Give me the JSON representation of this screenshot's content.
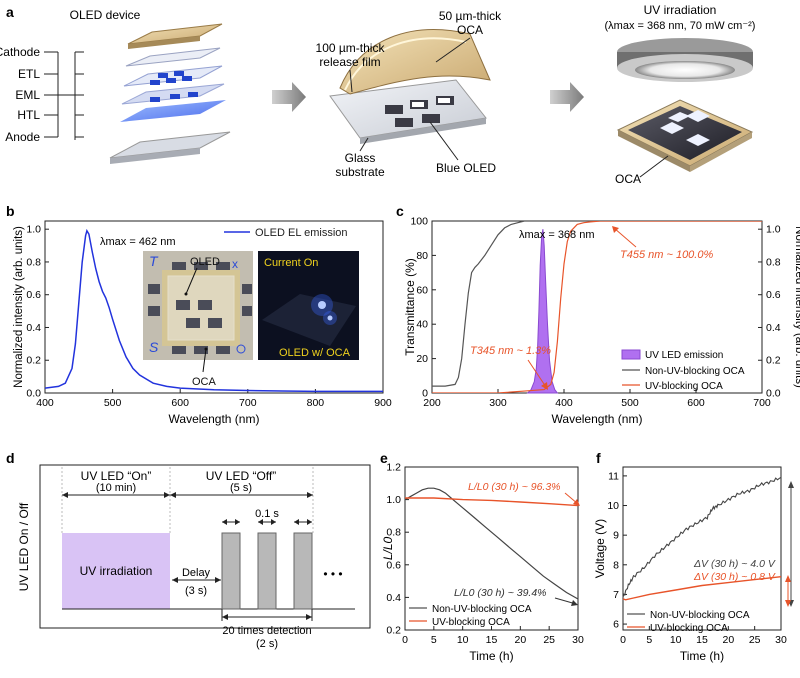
{
  "panel_a": {
    "letter": "a",
    "oled_title": "OLED device",
    "layers": [
      "Cathode",
      "ETL",
      "EML",
      "HTL",
      "Anode"
    ],
    "oca_label": "50 µm-thick",
    "oca_label2": "OCA",
    "release_label": "100 µm-thick",
    "release_label2": "release film",
    "glass_label": "Glass",
    "glass_label2": "substrate",
    "blue_oled_label": "Blue OLED",
    "uv_title": "UV irradiation",
    "uv_sub": "(λmax = 368 nm, 70 mW cm⁻²)",
    "oca_bottom": "OCA"
  },
  "panel_b": {
    "letter": "b",
    "legend": "OLED EL emission",
    "lambda_text": "λmax = 462 nm",
    "inset_oled": "OLED",
    "inset_oca": "OCA",
    "inset_current": "Current On",
    "inset_oled_oca": "OLED w/ OCA",
    "colors": {
      "line": "#2233dd"
    }
  },
  "panel_c": {
    "letter": "c",
    "lambda_text": "λmax = 368 nm",
    "t455": "T455 nm ~ 100.0%",
    "t345": "T345 nm ~ 1.3%",
    "legend": [
      "UV LED emission",
      "Non-UV-blocking OCA",
      "UV-blocking OCA"
    ],
    "colors": {
      "purple": "#b070f0",
      "orange": "#e8542a",
      "gray": "#555555"
    }
  },
  "panel_d": {
    "letter": "d",
    "ylabel": "UV LED On / Off",
    "on_title": "UV LED “On”",
    "on_sub": "(10 min)",
    "off_title": "UV LED “Off”",
    "off_sub": "(5 s)",
    "uv_irradiation": "UV irradiation",
    "delay": "Delay",
    "delay_sub": "(3 s)",
    "pulse": "0.1 s",
    "detection": "20 times detection",
    "detection_sub": "(2 s)",
    "ellipsis": "• • •"
  },
  "panel_e": {
    "letter": "e",
    "ann_top": "L/L0 (30 h) ~ 96.3%",
    "ann_bottom": "L/L0 (30 h) ~ 39.4%",
    "legend": [
      "Non-UV-blocking OCA",
      "UV-blocking OCA"
    ]
  },
  "panel_f": {
    "letter": "f",
    "ann_top": "ΔV (30 h) ~ 4.0 V",
    "ann_bottom": "ΔV (30 h) ~ 0.8 V",
    "legend": [
      "Non-UV-blocking OCA",
      "UV-blocking OCA"
    ]
  },
  "chart_data": [
    {
      "id": "b",
      "type": "line",
      "title": "",
      "xlabel": "Wavelength (nm)",
      "ylabel": "Normalized intensity (arb. units)",
      "xlim": [
        400,
        900
      ],
      "ylim": [
        0.0,
        1.05
      ],
      "xticks": [
        400,
        500,
        600,
        700,
        800,
        900
      ],
      "yticks": [
        0.0,
        0.2,
        0.4,
        0.6,
        0.8,
        1.0
      ],
      "series": [
        {
          "name": "OLED EL emission",
          "x": [
            400,
            420,
            430,
            440,
            445,
            450,
            455,
            460,
            462,
            465,
            470,
            475,
            480,
            485,
            490,
            495,
            500,
            510,
            520,
            530,
            540,
            560,
            580,
            600,
            650,
            700,
            750,
            800,
            850,
            900
          ],
          "y": [
            0.03,
            0.04,
            0.06,
            0.15,
            0.3,
            0.55,
            0.8,
            0.96,
            0.99,
            0.97,
            0.86,
            0.76,
            0.68,
            0.62,
            0.58,
            0.52,
            0.45,
            0.32,
            0.22,
            0.15,
            0.11,
            0.06,
            0.04,
            0.03,
            0.02,
            0.015,
            0.012,
            0.01,
            0.01,
            0.01
          ]
        }
      ]
    },
    {
      "id": "c",
      "type": "line",
      "title": "",
      "xlabel": "Wavelength (nm)",
      "ylabel": "Transmittance (%)",
      "ylabel_right": "Normalized intensity (arb. units)",
      "xlim": [
        200,
        700
      ],
      "ylim": [
        0,
        100
      ],
      "ylim_right": [
        0.0,
        1.05
      ],
      "xticks": [
        200,
        300,
        400,
        500,
        600,
        700
      ],
      "yticks": [
        0,
        20,
        40,
        60,
        80,
        100
      ],
      "yticks_right": [
        0.0,
        0.2,
        0.4,
        0.6,
        0.8,
        1.0
      ],
      "series": [
        {
          "name": "Non-UV-blocking OCA",
          "axis": "left",
          "x": [
            200,
            220,
            235,
            240,
            245,
            250,
            255,
            260,
            265,
            270,
            280,
            290,
            300,
            310,
            320,
            330,
            340,
            350,
            400,
            500,
            600,
            700
          ],
          "y": [
            4,
            4,
            5,
            9,
            20,
            40,
            58,
            70,
            73,
            75,
            80,
            86,
            92,
            96,
            98,
            99,
            100,
            100,
            100,
            100,
            100,
            100
          ]
        },
        {
          "name": "UV-blocking OCA",
          "axis": "left",
          "x": [
            200,
            300,
            345,
            370,
            380,
            385,
            390,
            395,
            400,
            405,
            410,
            420,
            430,
            440,
            455,
            480,
            500,
            600,
            700
          ],
          "y": [
            0,
            0,
            1.3,
            2,
            5,
            12,
            30,
            55,
            75,
            88,
            94,
            98,
            99,
            99.5,
            100,
            100,
            100,
            100,
            100
          ]
        },
        {
          "name": "UV LED emission",
          "axis": "right",
          "x": [
            345,
            350,
            355,
            358,
            360,
            362,
            364,
            366,
            368,
            370,
            372,
            375,
            378,
            382,
            386,
            390
          ],
          "y": [
            0.0,
            0.02,
            0.07,
            0.15,
            0.28,
            0.5,
            0.78,
            0.95,
            1.0,
            0.9,
            0.7,
            0.42,
            0.2,
            0.07,
            0.02,
            0.0
          ]
        }
      ]
    },
    {
      "id": "e",
      "type": "line",
      "xlabel": "Time (h)",
      "ylabel": "L/L0",
      "xlim": [
        0,
        30
      ],
      "ylim": [
        0.2,
        1.2
      ],
      "xticks": [
        0,
        5,
        10,
        15,
        20,
        25,
        30
      ],
      "yticks": [
        0.2,
        0.4,
        0.6,
        0.8,
        1.0,
        1.2
      ],
      "series": [
        {
          "name": "Non-UV-blocking OCA",
          "x": [
            0,
            1,
            2,
            3,
            4,
            5,
            6,
            7,
            8,
            9,
            10,
            12,
            14,
            16,
            18,
            20,
            22,
            24,
            26,
            28,
            30
          ],
          "y": [
            1.0,
            1.02,
            1.04,
            1.06,
            1.07,
            1.07,
            1.06,
            1.04,
            1.01,
            0.98,
            0.95,
            0.89,
            0.83,
            0.77,
            0.71,
            0.65,
            0.59,
            0.53,
            0.48,
            0.43,
            0.39
          ]
        },
        {
          "name": "UV-blocking OCA",
          "x": [
            0,
            5,
            10,
            15,
            20,
            25,
            30
          ],
          "y": [
            1.01,
            1.01,
            1.0,
            0.995,
            0.985,
            0.975,
            0.963
          ]
        }
      ]
    },
    {
      "id": "f",
      "type": "line",
      "xlabel": "Time (h)",
      "ylabel": "Voltage (V)",
      "xlim": [
        0,
        30
      ],
      "ylim": [
        5.8,
        11.3
      ],
      "xticks": [
        0,
        5,
        10,
        15,
        20,
        25,
        30
      ],
      "yticks": [
        6,
        7,
        8,
        9,
        10,
        11
      ],
      "series": [
        {
          "name": "Non-UV-blocking OCA",
          "x": [
            0,
            1,
            2,
            4,
            6,
            8,
            10,
            12,
            14,
            16,
            17,
            18,
            20,
            22,
            24,
            26,
            28,
            30
          ],
          "y": [
            6.9,
            7.3,
            7.6,
            7.9,
            8.3,
            8.6,
            8.9,
            9.2,
            9.4,
            9.6,
            9.9,
            10.0,
            10.2,
            10.4,
            10.5,
            10.7,
            10.8,
            10.95
          ]
        },
        {
          "name": "UV-blocking OCA",
          "x": [
            0,
            0.5,
            2,
            5,
            10,
            15,
            20,
            25,
            30
          ],
          "y": [
            6.85,
            6.82,
            6.88,
            7.0,
            7.15,
            7.3,
            7.4,
            7.5,
            7.6
          ]
        }
      ]
    }
  ]
}
